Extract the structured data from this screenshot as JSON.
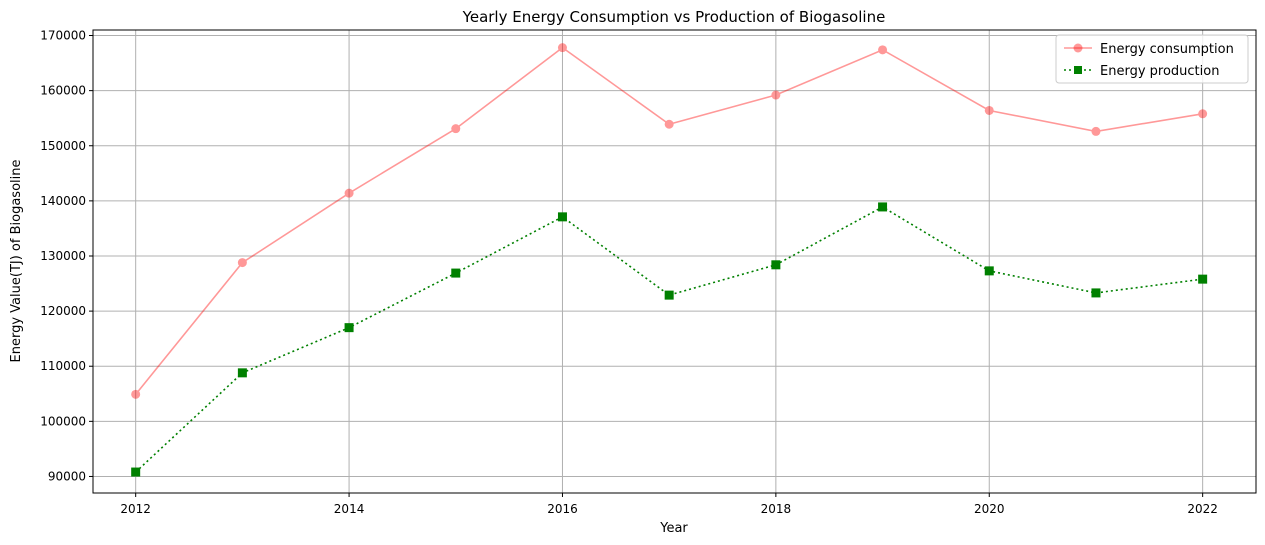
{
  "chart_data": {
    "type": "line",
    "title": "Yearly Energy Consumption vs Production of Biogasoline",
    "xlabel": "Year",
    "ylabel": "Energy Value(TJ) of Biogasoline",
    "x": [
      2012,
      2013,
      2014,
      2015,
      2016,
      2017,
      2018,
      2019,
      2020,
      2021,
      2022
    ],
    "xlim": [
      2011.6,
      2022.5
    ],
    "ylim": [
      87000,
      171000
    ],
    "x_ticks": [
      2012,
      2014,
      2016,
      2018,
      2020,
      2022
    ],
    "y_ticks": [
      90000,
      100000,
      110000,
      120000,
      130000,
      140000,
      150000,
      160000,
      170000
    ],
    "grid": true,
    "legend_position": "top-right",
    "series": [
      {
        "name": "Energy consumption",
        "color": "#ff0000",
        "opacity": 0.4,
        "line_style": "solid",
        "marker": "circle",
        "values": [
          104900,
          128800,
          141400,
          153100,
          167800,
          153900,
          159200,
          167400,
          156400,
          152600,
          155800
        ]
      },
      {
        "name": "Energy production",
        "color": "#008000",
        "opacity": 1,
        "line_style": "dotted",
        "marker": "square",
        "values": [
          90800,
          108800,
          117000,
          126900,
          137100,
          122900,
          128400,
          138900,
          127300,
          123300,
          125800
        ]
      }
    ]
  }
}
